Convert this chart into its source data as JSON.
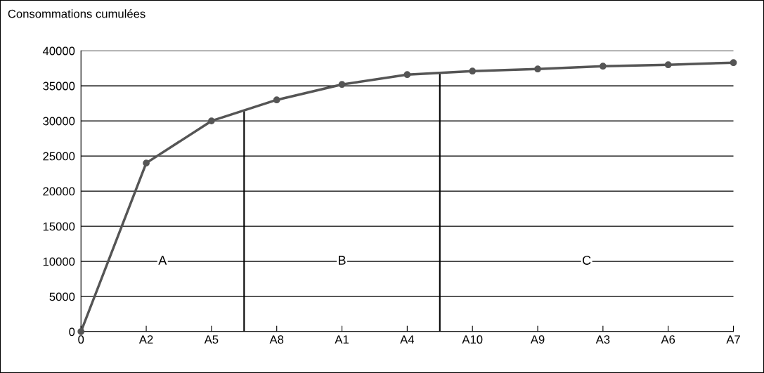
{
  "chart_data": {
    "type": "line",
    "ylabel": "Consommations cumulées",
    "categories": [
      "0",
      "A2",
      "A5",
      "A8",
      "A1",
      "A4",
      "A10",
      "A9",
      "A3",
      "A6",
      "A7"
    ],
    "series": [
      {
        "color": "#555555",
        "values": [
          0,
          24000,
          30000,
          33000,
          35200,
          36600,
          37100,
          37400,
          37800,
          38000,
          38300
        ]
      }
    ],
    "ylim": [
      0,
      40000
    ],
    "yticks": [
      0,
      5000,
      10000,
      15000,
      20000,
      25000,
      30000,
      35000,
      40000
    ],
    "grid": "y",
    "marker": "circle",
    "line_style": "solid",
    "legend": false,
    "annotations": [
      "A",
      "B",
      "C"
    ]
  }
}
